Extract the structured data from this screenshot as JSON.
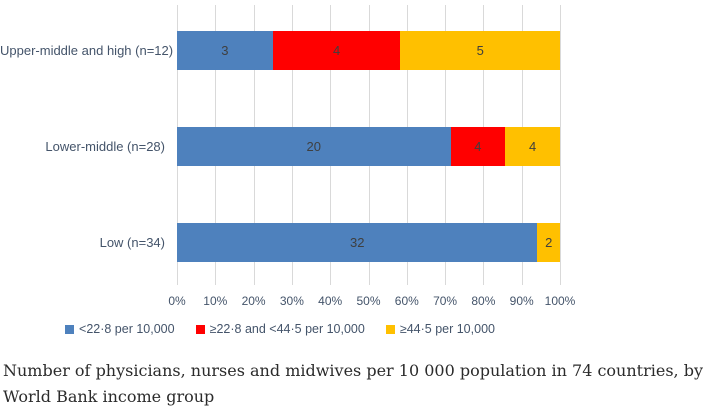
{
  "chart_data": {
    "type": "bar",
    "orientation": "horizontal",
    "stacked": true,
    "normalized": "100%",
    "categories": [
      "Upper-middle and high (n=12)",
      "Lower-middle (n=28)",
      "Low (n=34)"
    ],
    "series": [
      {
        "name": "<22·8 per 10,000",
        "color": "#4e81bd",
        "values": [
          3,
          20,
          32
        ]
      },
      {
        "name": "≥22·8 and <44·5 per 10,000",
        "color": "#ff0000",
        "values": [
          4,
          4,
          0
        ]
      },
      {
        "name": "≥44·5 per 10,000",
        "color": "#ffc000",
        "values": [
          5,
          4,
          2
        ]
      }
    ],
    "row_totals": [
      12,
      28,
      34
    ],
    "x_axis": {
      "min": 0,
      "max": 100,
      "ticks": [
        "0%",
        "10%",
        "20%",
        "30%",
        "40%",
        "50%",
        "60%",
        "70%",
        "80%",
        "90%",
        "100%"
      ]
    },
    "grid": true,
    "gridline_color": "#d9d9d9",
    "legend_position": "bottom",
    "title": "",
    "xlabel": "",
    "ylabel": ""
  },
  "caption": "Number of physicians, nurses and midwives per 10 000 population in 74 countries, by World Bank income group",
  "colors": {
    "axis_text": "#44546a",
    "value_label_text": "#3f3f3f",
    "caption_text": "#2b2b2b",
    "background": "#ffffff"
  }
}
